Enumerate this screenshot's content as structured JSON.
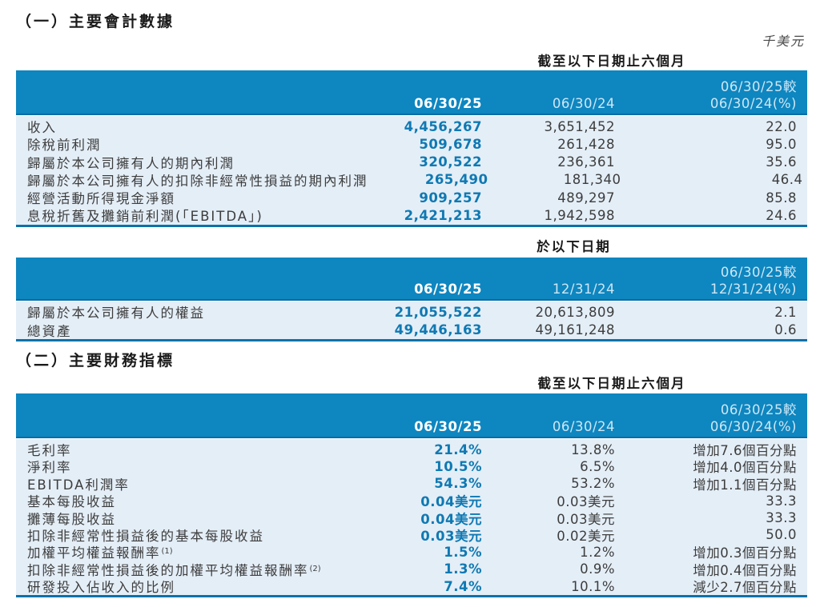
{
  "colors": {
    "header_bar": "#0E86C0",
    "header_edge": "#0A6DA5",
    "header_text_light": "#CDE7F5",
    "row_bg": "#E4EEF7",
    "table_border": "#0C72A8",
    "value_blue": "#0F79B3"
  },
  "unit": "千美元",
  "section1": {
    "title": "（一）主要會計數據"
  },
  "section2": {
    "title": "（二）主要財務指標"
  },
  "table1": {
    "caption": "截至以下日期止六個月",
    "header": {
      "col1": "06/30/25",
      "col2": "06/30/24",
      "col3_line1": "06/30/25較",
      "col3_line2": "06/30/24(%)"
    },
    "rows": [
      {
        "label": "收入",
        "v1": "4,456,267",
        "v2": "3,651,452",
        "v3": "22.0"
      },
      {
        "label": "除稅前利潤",
        "v1": "509,678",
        "v2": "261,428",
        "v3": "95.0"
      },
      {
        "label": "歸屬於本公司擁有人的期內利潤",
        "v1": "320,522",
        "v2": "236,361",
        "v3": "35.6"
      },
      {
        "label": "歸屬於本公司擁有人的扣除非經常性損益的期內利潤",
        "v1": "265,490",
        "v2": "181,340",
        "v3": "46.4"
      },
      {
        "label": "經營活動所得現金淨額",
        "v1": "909,257",
        "v2": "489,297",
        "v3": "85.8"
      },
      {
        "label": "息稅折舊及攤銷前利潤(「EBITDA」)",
        "v1": "2,421,213",
        "v2": "1,942,598",
        "v3": "24.6"
      }
    ]
  },
  "table2": {
    "caption": "於以下日期",
    "header": {
      "col1": "06/30/25",
      "col2": "12/31/24",
      "col3_line1": "06/30/25較",
      "col3_line2": "12/31/24(%)"
    },
    "rows": [
      {
        "label": "歸屬於本公司擁有人的權益",
        "v1": "21,055,522",
        "v2": "20,613,809",
        "v3": "2.1"
      },
      {
        "label": "總資產",
        "v1": "49,446,163",
        "v2": "49,161,248",
        "v3": "0.6"
      }
    ]
  },
  "table3": {
    "caption": "截至以下日期止六個月",
    "header": {
      "col1": "06/30/25",
      "col2": "06/30/24",
      "col3_line1": "06/30/25較",
      "col3_line2": "06/30/24(%)"
    },
    "rows": [
      {
        "label": "毛利率",
        "v1": "21.4%",
        "v2": "13.8%",
        "v3": "增加7.6個百分點"
      },
      {
        "label": "淨利率",
        "v1": "10.5%",
        "v2": "6.5%",
        "v3": "增加4.0個百分點"
      },
      {
        "label": "EBITDA利潤率",
        "v1": "54.3%",
        "v2": "53.2%",
        "v3": "增加1.1個百分點"
      },
      {
        "label": "基本每股收益",
        "v1": "0.04美元",
        "v2": "0.03美元",
        "v3": "33.3"
      },
      {
        "label": "攤薄每股收益",
        "v1": "0.04美元",
        "v2": "0.03美元",
        "v3": "33.3"
      },
      {
        "label": "扣除非經常性損益後的基本每股收益",
        "v1": "0.03美元",
        "v2": "0.02美元",
        "v3": "50.0"
      },
      {
        "label": "加權平均權益報酬率",
        "sup": "(1)",
        "v1": "1.5%",
        "v2": "1.2%",
        "v3": "增加0.3個百分點"
      },
      {
        "label": "扣除非經常性損益後的加權平均權益報酬率",
        "sup": "(2)",
        "v1": "1.3%",
        "v2": "0.9%",
        "v3": "增加0.4個百分點"
      },
      {
        "label": "研發投入佔收入的比例",
        "v1": "7.4%",
        "v2": "10.1%",
        "v3": "減少2.7個百分點"
      }
    ]
  }
}
